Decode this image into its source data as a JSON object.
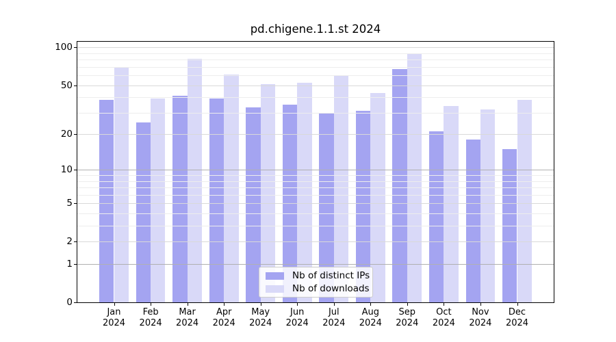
{
  "title": "pd.chigene.1.1.st 2024",
  "chart_data": {
    "type": "bar",
    "title": "pd.chigene.1.1.st 2024",
    "categories": [
      "Jan",
      "Feb",
      "Mar",
      "Apr",
      "May",
      "Jun",
      "Jul",
      "Aug",
      "Sep",
      "Oct",
      "Nov",
      "Dec"
    ],
    "x_year": "2024",
    "series": [
      {
        "name": "Nb of distinct IPs",
        "color": "#a4a4f1",
        "values": [
          38,
          25,
          41,
          39,
          33,
          35,
          30,
          31,
          67,
          21,
          18,
          15
        ]
      },
      {
        "name": "Nb of downloads",
        "color": "#d9d9f8",
        "values": [
          69,
          39,
          81,
          61,
          51,
          52,
          59,
          43,
          89,
          34,
          32,
          38
        ]
      }
    ],
    "yscale": "log1p",
    "ylim": [
      0,
      111
    ],
    "yticks": [
      0,
      1,
      2,
      5,
      10,
      20,
      50,
      100
    ],
    "yticks_minor": [
      3,
      4,
      6,
      7,
      8,
      9,
      30,
      40,
      60,
      70,
      80,
      90
    ],
    "grid": true,
    "legend_position": "lower-center"
  },
  "colors": {
    "grid_major": "#b0b0b0",
    "grid_mid": "#d9d9d9",
    "grid_minor": "#ededed",
    "spine": "#000000",
    "legend_border": "#cccccc"
  }
}
